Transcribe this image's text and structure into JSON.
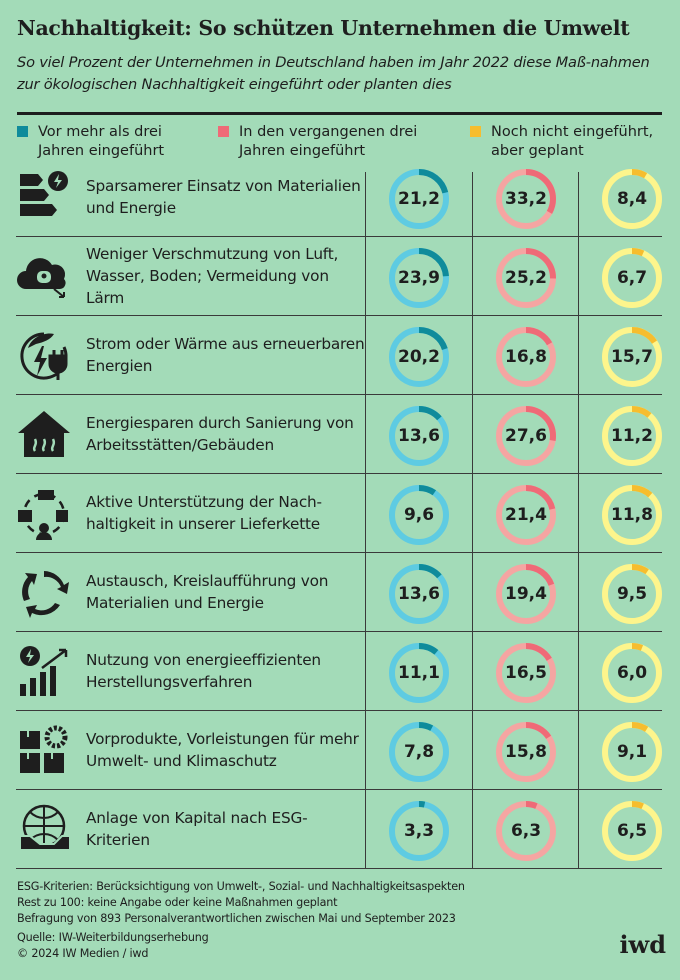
{
  "header": {
    "title": "Nachhaltigkeit: So schützen Unternehmen die Umwelt",
    "subtitle": "So viel Prozent der Unternehmen in Deutschland haben im Jahr 2022 diese Maß-nahmen zur ökologischen Nachhaltigkeit eingeführt oder planten dies"
  },
  "colors": {
    "bg": "#a3dbb8",
    "s1_dark": "#0f8b9b",
    "s1_light": "#5ecbe2",
    "s2_dark": "#ef6a77",
    "s2_light": "#f5a5a2",
    "s3_dark": "#f6bd2e",
    "s3_light": "#fdf58c"
  },
  "chart_data": {
    "type": "donut-table",
    "unit": "Prozent",
    "series": [
      {
        "name": "Vor mehr als drei Jahren eingeführt",
        "values": [
          21.2,
          23.9,
          20.2,
          13.6,
          9.6,
          13.6,
          11.1,
          7.8,
          3.3
        ],
        "labels": [
          "21,2",
          "23,9",
          "20,2",
          "13,6",
          "9,6",
          "13,6",
          "11,1",
          "7,8",
          "3,3"
        ]
      },
      {
        "name": "In den vergangenen drei Jahren eingeführt",
        "values": [
          33.2,
          25.2,
          16.8,
          27.6,
          21.4,
          19.4,
          16.5,
          15.8,
          6.3
        ],
        "labels": [
          "33,2",
          "25,2",
          "16,8",
          "27,6",
          "21,4",
          "19,4",
          "16,5",
          "15,8",
          "6,3"
        ]
      },
      {
        "name": "Noch nicht eingeführt, aber geplant",
        "values": [
          8.4,
          6.7,
          15.7,
          11.2,
          11.8,
          9.5,
          6.0,
          9.1,
          6.5
        ],
        "labels": [
          "8,4",
          "6,7",
          "15,7",
          "11,2",
          "11,8",
          "9,5",
          "6,0",
          "9,1",
          "6,5"
        ]
      }
    ],
    "categories": [
      {
        "label": "Sparsamerer Einsatz von Materialien und Energie",
        "icon": "energy-label-icon"
      },
      {
        "label": "Weniger Verschmutzung von Luft, Wasser, Boden; Vermeidung von Lärm",
        "icon": "pollution-cloud-icon"
      },
      {
        "label": "Strom oder Wärme aus erneuerbaren Energien",
        "icon": "renewable-plug-icon"
      },
      {
        "label": "Energiesparen durch Sanierung von Arbeitsstätten/Gebäuden",
        "icon": "house-heating-icon"
      },
      {
        "label": "Aktive Unterstützung der Nach-haltigkeit in unserer Lieferkette",
        "icon": "supply-chain-icon"
      },
      {
        "label": "Austausch, Kreislaufführung von Materialien und Energie",
        "icon": "recycle-icon"
      },
      {
        "label": "Nutzung von energieeffizienten Herstellungsverfahren",
        "icon": "efficiency-chart-icon"
      },
      {
        "label": "Vorprodukte, Vorleistungen für mehr Umwelt- und Klimaschutz",
        "icon": "boxes-gear-icon"
      },
      {
        "label": "Anlage von Kapital nach ESG-Kriterien",
        "icon": "globe-handshake-icon"
      }
    ],
    "max": 100
  },
  "legend": [
    {
      "label": "Vor mehr als drei Jahren eingeführt"
    },
    {
      "label": "In den vergangenen drei Jahren eingeführt"
    },
    {
      "label": "Noch nicht eingeführt, aber geplant"
    }
  ],
  "footer": {
    "notes": [
      "ESG-Kriterien: Berücksichtigung von Umwelt-, Sozial- und Nachhaltigkeitsaspekten",
      "Rest zu 100: keine Angabe oder keine Maßnahmen geplant",
      "Befragung von 893 Personalverantwortlichen zwischen Mai und September 2023"
    ],
    "source": "Quelle: IW-Weiterbildungserhebung",
    "copyright": "© 2024 IW Medien / iwd",
    "logo": "iwd"
  }
}
